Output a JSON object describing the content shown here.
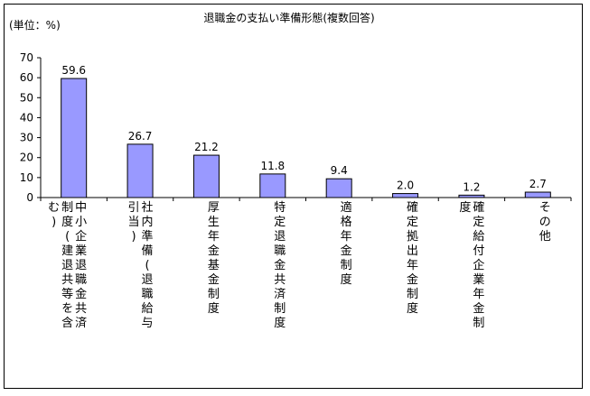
{
  "chart_data": {
    "type": "bar",
    "title": "退職金の支払い準備形態(複数回答)",
    "unit_label": "(単位：%)",
    "ylim": [
      0,
      70
    ],
    "yticks": [
      0,
      10,
      20,
      30,
      40,
      50,
      60,
      70
    ],
    "grid": false,
    "legend": "none",
    "bar_color": "#9999ff",
    "categories": [
      "中小企業退職金共済制度(建退共等を含む)",
      "社内準備(退職給与引当)",
      "厚生年金基金制度",
      "特定退職金共済制度",
      "適格年金制度",
      "確定拠出年金制度",
      "確定給付企業年金制度",
      "その他"
    ],
    "category_columns": [
      [
        "中小企業退職金共済",
        "制度(建退共等を含",
        "む)"
      ],
      [
        "社内準備(退職給与",
        "引当)"
      ],
      [
        "厚生年金基金制度"
      ],
      [
        "特定退職金共済制度"
      ],
      [
        "適格年金制度"
      ],
      [
        "確定拠出年金制度"
      ],
      [
        "確定給付企業年金制",
        "度"
      ],
      [
        "その他"
      ]
    ],
    "values": [
      59.6,
      26.7,
      21.2,
      11.8,
      9.4,
      2.0,
      1.2,
      2.7
    ],
    "value_labels": [
      "59.6",
      "26.7",
      "21.2",
      "11.8",
      "9.4",
      "2.0",
      "1.2",
      "2.7"
    ]
  }
}
